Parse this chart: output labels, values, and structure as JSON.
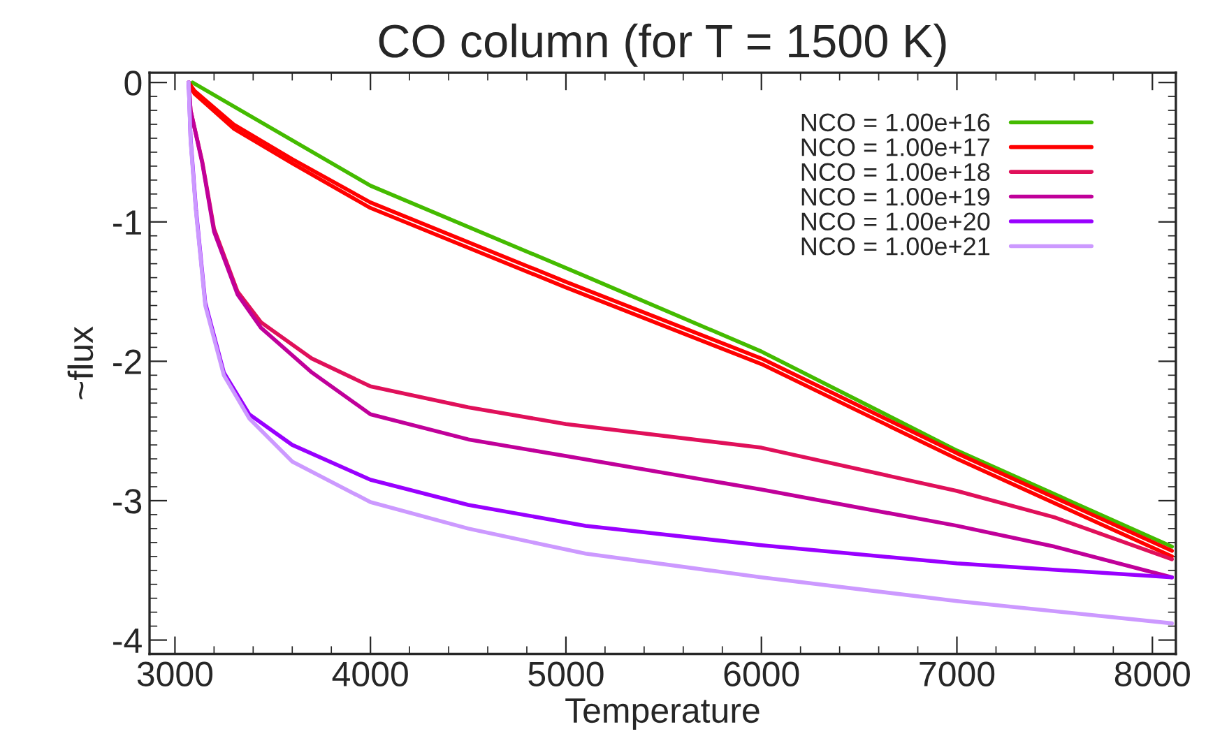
{
  "chart_data": {
    "type": "line",
    "title": "CO column (for T = 1500 K)",
    "xlabel": "Temperature",
    "ylabel": "~flux",
    "xlim": [
      2870,
      8120
    ],
    "ylim": [
      -4.1,
      0.07
    ],
    "xticks": [
      3000,
      4000,
      5000,
      6000,
      7000,
      8000
    ],
    "yticks": [
      0,
      -1,
      -2,
      -3,
      -4
    ],
    "legend": "top right",
    "grid": false,
    "line_style": "solid",
    "marker": "none",
    "series": [
      {
        "name": "NCO = 1.00e+16",
        "color": "#44bb00",
        "x": [
          3090,
          4000,
          5100,
          6000,
          7000,
          8100
        ],
        "values": [
          0,
          -0.74,
          -1.39,
          -1.93,
          -2.64,
          -3.33
        ]
      },
      {
        "name": "NCO = 1.00e+17",
        "color": "#ff0000",
        "x": [
          3070,
          3100,
          3300,
          3600,
          4000,
          5000,
          6000,
          7000,
          8100
        ],
        "values": [
          0,
          -0.06,
          -0.3,
          -0.55,
          -0.86,
          -1.43,
          -1.98,
          -2.66,
          -3.36
        ]
      },
      {
        "color": "#ff0000",
        "x": [
          3070,
          3100,
          3300,
          3600,
          4000,
          5000,
          6000,
          7000,
          8100
        ],
        "values": [
          0,
          -0.08,
          -0.33,
          -0.58,
          -0.9,
          -1.47,
          -2.02,
          -2.7,
          -3.4
        ]
      },
      {
        "name": "NCO = 1.00e+18",
        "color": "#e0105a",
        "x": [
          3070,
          3080,
          3140,
          3200,
          3320,
          3440,
          3700,
          4000,
          4500,
          5000,
          6000,
          7000,
          7500,
          8100
        ],
        "values": [
          0,
          -0.2,
          -0.57,
          -1.05,
          -1.5,
          -1.72,
          -1.98,
          -2.18,
          -2.33,
          -2.45,
          -2.62,
          -2.93,
          -3.12,
          -3.42
        ]
      },
      {
        "name": "NCO = 1.00e+19",
        "color": "#c0009a",
        "x": [
          3070,
          3080,
          3140,
          3200,
          3320,
          3440,
          3700,
          4000,
          4500,
          5000,
          6000,
          7000,
          7500,
          8100
        ],
        "values": [
          0,
          -0.2,
          -0.58,
          -1.07,
          -1.52,
          -1.76,
          -2.08,
          -2.38,
          -2.56,
          -2.68,
          -2.92,
          -3.18,
          -3.33,
          -3.55
        ]
      },
      {
        "name": "NCO = 1.00e+20",
        "color": "#9900ff",
        "x": [
          3070,
          3080,
          3107,
          3155,
          3250,
          3380,
          3600,
          4000,
          4500,
          5100,
          6000,
          7000,
          8100
        ],
        "values": [
          0,
          -0.4,
          -0.9,
          -1.58,
          -2.08,
          -2.38,
          -2.6,
          -2.85,
          -3.03,
          -3.18,
          -3.32,
          -3.45,
          -3.55
        ]
      },
      {
        "name": "NCO = 1.00e+21",
        "color": "#cc99ff",
        "x": [
          3070,
          3080,
          3107,
          3155,
          3250,
          3380,
          3600,
          4000,
          4500,
          5100,
          6000,
          7000,
          8100
        ],
        "values": [
          0,
          -0.42,
          -0.92,
          -1.6,
          -2.1,
          -2.41,
          -2.72,
          -3.01,
          -3.2,
          -3.38,
          -3.55,
          -3.72,
          -3.88
        ]
      }
    ]
  }
}
